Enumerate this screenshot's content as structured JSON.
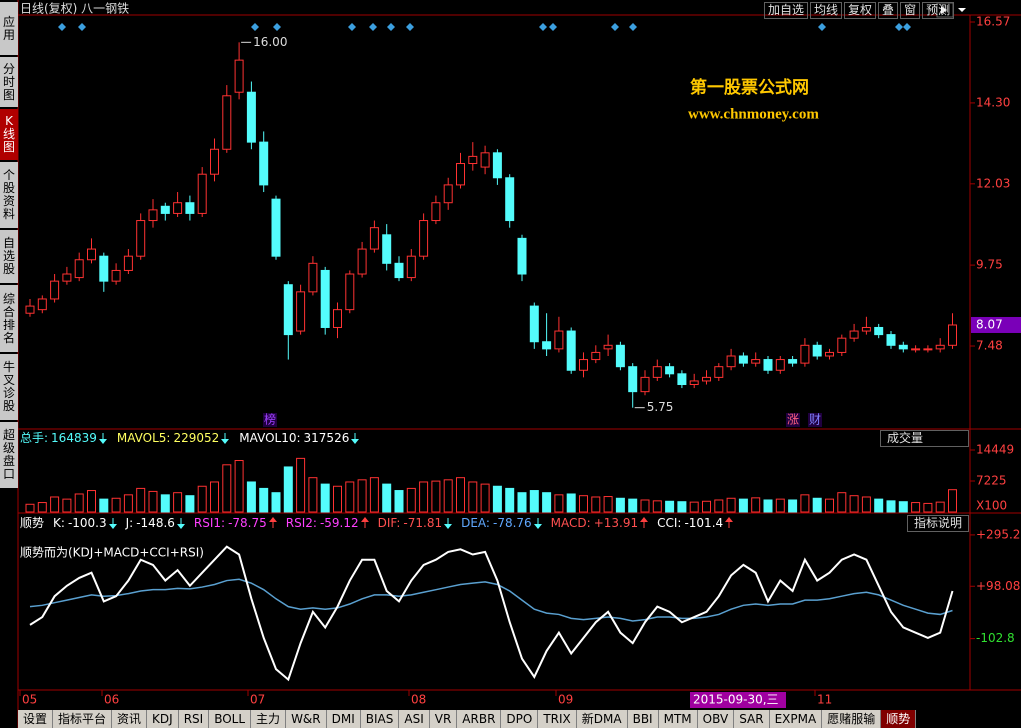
{
  "header": {
    "title": "日线(复权)  八一钢铁",
    "buttons": [
      "加自选",
      "均线",
      "复权",
      "叠",
      "窗",
      "预测"
    ]
  },
  "sidebar": [
    {
      "label": "应用"
    },
    {
      "label": "分时图"
    },
    {
      "label": "K线图",
      "selected": true
    },
    {
      "label": "个股资料"
    },
    {
      "label": "自选股"
    },
    {
      "label": "综合排名"
    },
    {
      "label": "牛叉诊股"
    },
    {
      "label": "超级盘口"
    }
  ],
  "watermark": [
    "第一股票公式网",
    "www.chnmoney.com"
  ],
  "price": {
    "ylim": [
      5.18,
      16.57
    ],
    "yticks": [
      16.57,
      {
        "value": 14.3,
        "label": "14.30"
      },
      12.03,
      9.75,
      7.48
    ],
    "last": 8.07,
    "up_color": "#ff3232",
    "down_color": "#54fcfc",
    "high_label": {
      "value": 16,
      "label": "16.00"
    },
    "low_label": {
      "value": 5.75,
      "label": "5.75"
    },
    "markers": [
      "榜",
      "涨",
      "财"
    ],
    "candles": [
      [
        8.4,
        8.8,
        8.3,
        8.6
      ],
      [
        8.5,
        8.9,
        8.4,
        8.8
      ],
      [
        8.8,
        9.5,
        8.7,
        9.3
      ],
      [
        9.3,
        9.7,
        9.2,
        9.5
      ],
      [
        9.4,
        10.1,
        9.3,
        9.9
      ],
      [
        9.9,
        10.5,
        9.8,
        10.2
      ],
      [
        10.0,
        10.1,
        9.0,
        9.3
      ],
      [
        9.3,
        9.8,
        9.2,
        9.6
      ],
      [
        9.6,
        10.2,
        9.5,
        10.0
      ],
      [
        10.0,
        11.2,
        9.9,
        11.0
      ],
      [
        11.0,
        11.6,
        10.8,
        11.3
      ],
      [
        11.4,
        11.5,
        11.0,
        11.2
      ],
      [
        11.2,
        11.8,
        11.1,
        11.5
      ],
      [
        11.5,
        11.7,
        11.0,
        11.2
      ],
      [
        11.2,
        12.5,
        11.1,
        12.3
      ],
      [
        12.3,
        13.3,
        12.1,
        13.0
      ],
      [
        13.0,
        14.8,
        12.9,
        14.5
      ],
      [
        14.6,
        16.0,
        14.4,
        15.5
      ],
      [
        14.6,
        14.9,
        13.0,
        13.2
      ],
      [
        13.2,
        13.5,
        11.8,
        12.0
      ],
      [
        11.6,
        11.7,
        9.9,
        10.0
      ],
      [
        9.2,
        9.3,
        7.1,
        7.8
      ],
      [
        7.9,
        9.2,
        7.8,
        9.0
      ],
      [
        9.0,
        10.0,
        8.9,
        9.8
      ],
      [
        9.6,
        9.7,
        7.8,
        8.0
      ],
      [
        8.0,
        8.7,
        7.7,
        8.5
      ],
      [
        8.5,
        9.6,
        8.4,
        9.5
      ],
      [
        9.5,
        10.4,
        9.4,
        10.2
      ],
      [
        10.2,
        11.0,
        10.1,
        10.8
      ],
      [
        10.6,
        10.9,
        9.6,
        9.8
      ],
      [
        9.8,
        10.0,
        9.3,
        9.4
      ],
      [
        9.4,
        10.2,
        9.3,
        10.0
      ],
      [
        10.0,
        11.2,
        9.9,
        11.0
      ],
      [
        11.0,
        11.7,
        10.9,
        11.5
      ],
      [
        11.5,
        12.2,
        11.3,
        12.0
      ],
      [
        12.0,
        12.9,
        11.9,
        12.6
      ],
      [
        12.6,
        13.2,
        12.4,
        12.8
      ],
      [
        12.5,
        13.1,
        12.3,
        12.9
      ],
      [
        12.9,
        13.0,
        12.0,
        12.2
      ],
      [
        12.2,
        12.3,
        10.8,
        11.0
      ],
      [
        10.5,
        10.6,
        9.3,
        9.5
      ],
      [
        8.6,
        8.7,
        7.4,
        7.6
      ],
      [
        7.6,
        8.4,
        7.2,
        7.4
      ],
      [
        7.4,
        8.3,
        7.3,
        7.9
      ],
      [
        7.9,
        8.0,
        6.7,
        6.8
      ],
      [
        6.8,
        7.3,
        6.6,
        7.1
      ],
      [
        7.1,
        7.5,
        7.0,
        7.3
      ],
      [
        7.4,
        7.8,
        7.2,
        7.5
      ],
      [
        7.5,
        7.6,
        6.8,
        6.9
      ],
      [
        6.9,
        7.0,
        5.75,
        6.2
      ],
      [
        6.2,
        6.8,
        6.1,
        6.6
      ],
      [
        6.6,
        7.1,
        6.5,
        6.9
      ],
      [
        6.9,
        7.0,
        6.6,
        6.7
      ],
      [
        6.7,
        6.8,
        6.3,
        6.4
      ],
      [
        6.4,
        6.7,
        6.3,
        6.5
      ],
      [
        6.5,
        6.8,
        6.4,
        6.6
      ],
      [
        6.6,
        7.0,
        6.5,
        6.9
      ],
      [
        6.9,
        7.4,
        6.8,
        7.2
      ],
      [
        7.2,
        7.3,
        6.9,
        7.0
      ],
      [
        7.0,
        7.3,
        6.9,
        7.1
      ],
      [
        7.1,
        7.2,
        6.7,
        6.8
      ],
      [
        6.8,
        7.2,
        6.7,
        7.1
      ],
      [
        7.1,
        7.2,
        6.9,
        7.0
      ],
      [
        7.0,
        7.7,
        6.9,
        7.5
      ],
      [
        7.5,
        7.6,
        7.1,
        7.2
      ],
      [
        7.2,
        7.4,
        7.1,
        7.3
      ],
      [
        7.3,
        7.8,
        7.2,
        7.7
      ],
      [
        7.7,
        8.1,
        7.6,
        7.9
      ],
      [
        7.9,
        8.3,
        7.8,
        8.0
      ],
      [
        8.0,
        8.1,
        7.7,
        7.8
      ],
      [
        7.8,
        7.9,
        7.4,
        7.5
      ],
      [
        7.5,
        7.6,
        7.3,
        7.4
      ],
      [
        7.4,
        7.5,
        7.3,
        7.4
      ],
      [
        7.4,
        7.5,
        7.3,
        7.4
      ],
      [
        7.4,
        7.7,
        7.3,
        7.5
      ],
      [
        7.5,
        8.4,
        7.4,
        8.07
      ]
    ]
  },
  "volume": {
    "stats": [
      {
        "name": "总手:",
        "value": 164839,
        "color": "#54fcfc",
        "trend": "down"
      },
      {
        "name": "MAVOL5:",
        "value": 229052,
        "color": "#ffff60",
        "trend": "down"
      },
      {
        "name": "MAVOL10:",
        "value": 317526,
        "color": "#ffffff",
        "trend": "down"
      }
    ],
    "selector": "成交量",
    "ylim": [
      0,
      15150
    ],
    "yticks": [
      14449,
      7225
    ],
    "unit": "X100",
    "values": [
      1800,
      2200,
      3500,
      3000,
      4200,
      5000,
      3000,
      3200,
      4000,
      5500,
      4800,
      4000,
      4500,
      3800,
      6000,
      7000,
      11000,
      12000,
      7000,
      5500,
      4500,
      10500,
      12500,
      8000,
      6500,
      6000,
      7000,
      7500,
      8000,
      6500,
      5000,
      5500,
      7000,
      7200,
      7500,
      8000,
      7000,
      6500,
      6000,
      5500,
      4500,
      5000,
      4500,
      4000,
      4200,
      3800,
      3500,
      3600,
      3200,
      3000,
      2800,
      2600,
      2500,
      2400,
      2300,
      2500,
      2800,
      3200,
      3000,
      3300,
      2800,
      3000,
      2800,
      4000,
      3200,
      3000,
      4500,
      3800,
      3500,
      3000,
      2600,
      2400,
      2200,
      2000,
      2300,
      5200
    ]
  },
  "indicator": {
    "stats": [
      {
        "name": "顺势",
        "color": "#ffffff"
      },
      {
        "name": "K:",
        "value": -100.3,
        "color": "#ffffff",
        "trend": "down"
      },
      {
        "name": "J:",
        "value": -148.6,
        "color": "#ffffff",
        "trend": "down"
      },
      {
        "name": "RSI1:",
        "value": -78.75,
        "color": "#ff40ff",
        "trend": "up"
      },
      {
        "name": "RSI2:",
        "value": -59.12,
        "color": "#ff40ff",
        "trend": "up"
      },
      {
        "name": "DIF:",
        "value": -71.81,
        "color": "#ff5050",
        "trend": "down"
      },
      {
        "name": "DEA:",
        "value": -78.76,
        "color": "#60a8ff",
        "trend": "down"
      },
      {
        "name": "MACD:",
        "value": 13.91,
        "label": "+13.91",
        "color": "#ff5050",
        "trend": "up"
      },
      {
        "name": "CCI:",
        "value": -101.4,
        "color": "#ffffff",
        "trend": "up"
      }
    ],
    "button": "指标说明",
    "subtitle": "顺势而为(KDJ+MACD+CCI+RSI)",
    "ylim": [
      -300,
      314
    ],
    "yticks": [
      {
        "value": 295.2,
        "label": "+295.2"
      },
      {
        "value": 98.08,
        "label": "+98.08"
      },
      -102.8
    ],
    "series": [
      {
        "color": "#5aa0d0",
        "values": [
          20,
          25,
          35,
          45,
          55,
          65,
          60,
          62,
          70,
          80,
          85,
          85,
          90,
          88,
          95,
          105,
          120,
          125,
          110,
          85,
          50,
          20,
          10,
          15,
          10,
          15,
          30,
          50,
          65,
          65,
          60,
          65,
          75,
          85,
          95,
          105,
          110,
          115,
          105,
          80,
          45,
          10,
          -5,
          -10,
          -25,
          -30,
          -25,
          -20,
          -25,
          -35,
          -30,
          -20,
          -20,
          -25,
          -25,
          -20,
          -10,
          10,
          25,
          30,
          25,
          30,
          30,
          45,
          45,
          50,
          60,
          70,
          75,
          65,
          45,
          25,
          10,
          -5,
          -10,
          5
        ]
      },
      {
        "color": "#ffffff",
        "values": [
          -50,
          -20,
          60,
          100,
          130,
          150,
          40,
          60,
          120,
          200,
          180,
          120,
          160,
          100,
          150,
          200,
          250,
          220,
          50,
          -100,
          -220,
          -260,
          -120,
          0,
          -60,
          20,
          120,
          200,
          200,
          80,
          40,
          120,
          180,
          200,
          230,
          240,
          220,
          230,
          120,
          -40,
          -180,
          -250,
          -150,
          -80,
          -160,
          -100,
          -40,
          0,
          -80,
          -120,
          -40,
          20,
          0,
          -40,
          -20,
          0,
          60,
          140,
          180,
          150,
          40,
          120,
          80,
          200,
          120,
          150,
          200,
          220,
          200,
          100,
          0,
          -60,
          -80,
          -100,
          -80,
          80
        ]
      }
    ]
  },
  "dates": {
    "labels": [
      "05",
      "06",
      "07",
      "08",
      "09",
      "11"
    ],
    "cursor": "2015-09-30,三"
  },
  "tabs": [
    {
      "label": "设置"
    },
    {
      "label": "指标平台"
    },
    {
      "label": "资讯"
    },
    {
      "label": "KDJ"
    },
    {
      "label": "RSI"
    },
    {
      "label": "BOLL"
    },
    {
      "label": "主力"
    },
    {
      "label": "W&R"
    },
    {
      "label": "DMI"
    },
    {
      "label": "BIAS"
    },
    {
      "label": "ASI"
    },
    {
      "label": "VR"
    },
    {
      "label": "ARBR"
    },
    {
      "label": "DPO"
    },
    {
      "label": "TRIX"
    },
    {
      "label": "新DMA"
    },
    {
      "label": "BBI"
    },
    {
      "label": "MTM"
    },
    {
      "label": "OBV"
    },
    {
      "label": "SAR"
    },
    {
      "label": "EXPMA"
    },
    {
      "label": "愿赌服输"
    },
    {
      "label": "顺势",
      "selected": true
    }
  ]
}
